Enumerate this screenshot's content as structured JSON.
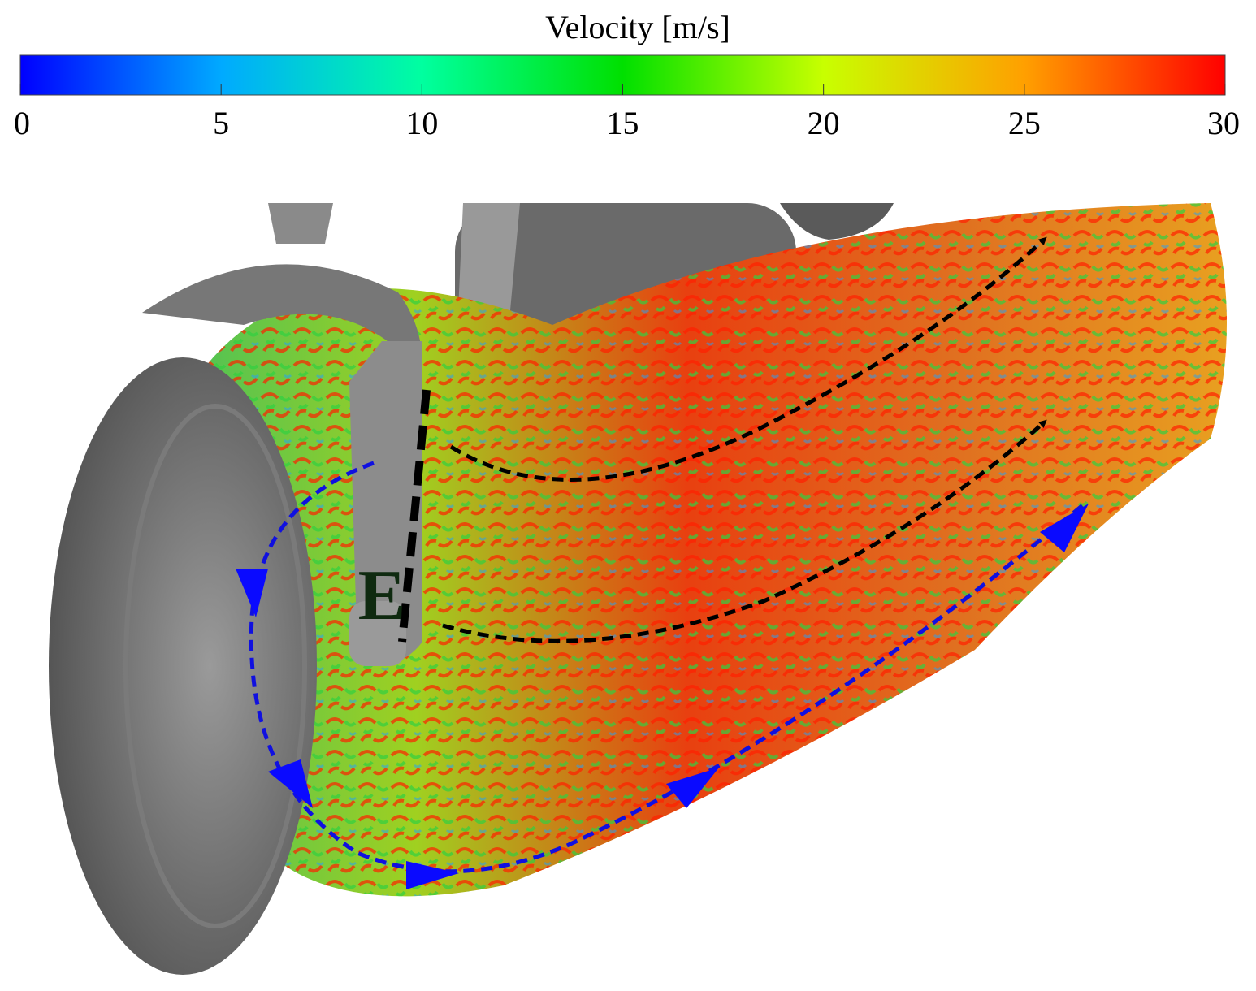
{
  "colorbar": {
    "title": "Velocity [m/s]",
    "lim": [
      0,
      30
    ],
    "ticks": [
      0,
      5,
      10,
      15,
      20,
      25,
      30
    ]
  },
  "labels": [
    "E"
  ]
}
